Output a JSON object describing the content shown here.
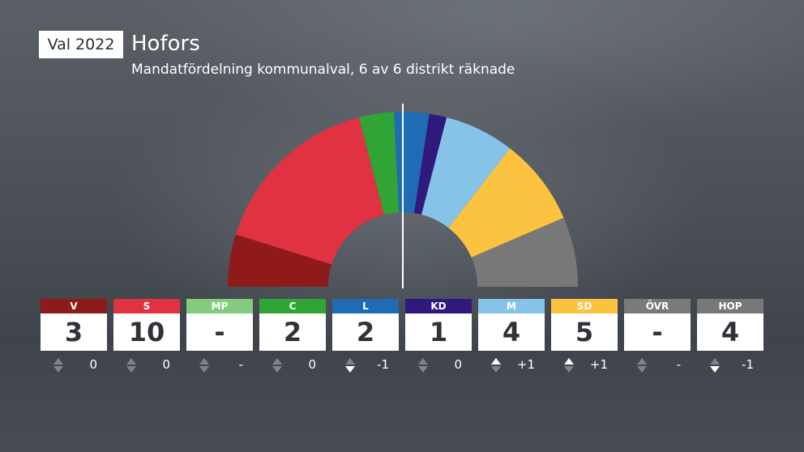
{
  "badge": "Val 2022",
  "title": "Hofors",
  "subtitle": "Mandatfördelning kommunalval, 6 av 6 distrikt räknade",
  "chart_data": {
    "type": "hemicycle",
    "total_seats": 31,
    "seat_order": [
      "V",
      "S",
      "MP",
      "C",
      "L",
      "KD",
      "M",
      "SD",
      "ÖVR",
      "HOP"
    ],
    "parties": [
      {
        "abbr": "V",
        "seats": "3",
        "change": "0",
        "trend": "none",
        "color": "#8e1a1a"
      },
      {
        "abbr": "S",
        "seats": "10",
        "change": "0",
        "trend": "none",
        "color": "#e03241"
      },
      {
        "abbr": "MP",
        "seats": "-",
        "change": "-",
        "trend": "none",
        "color": "#83cc7e"
      },
      {
        "abbr": "C",
        "seats": "2",
        "change": "0",
        "trend": "none",
        "color": "#30a434"
      },
      {
        "abbr": "L",
        "seats": "2",
        "change": "-1",
        "trend": "down",
        "color": "#1f6bb5"
      },
      {
        "abbr": "KD",
        "seats": "1",
        "change": "0",
        "trend": "none",
        "color": "#30197c"
      },
      {
        "abbr": "M",
        "seats": "4",
        "change": "+1",
        "trend": "up",
        "color": "#85c3e8"
      },
      {
        "abbr": "SD",
        "seats": "5",
        "change": "+1",
        "trend": "up",
        "color": "#fcc340"
      },
      {
        "abbr": "ÖVR",
        "seats": "-",
        "change": "-",
        "trend": "none",
        "color": "#7a7a7a"
      },
      {
        "abbr": "HOP",
        "seats": "4",
        "change": "-1",
        "trend": "down",
        "color": "#787878"
      }
    ],
    "majority_line": true
  }
}
